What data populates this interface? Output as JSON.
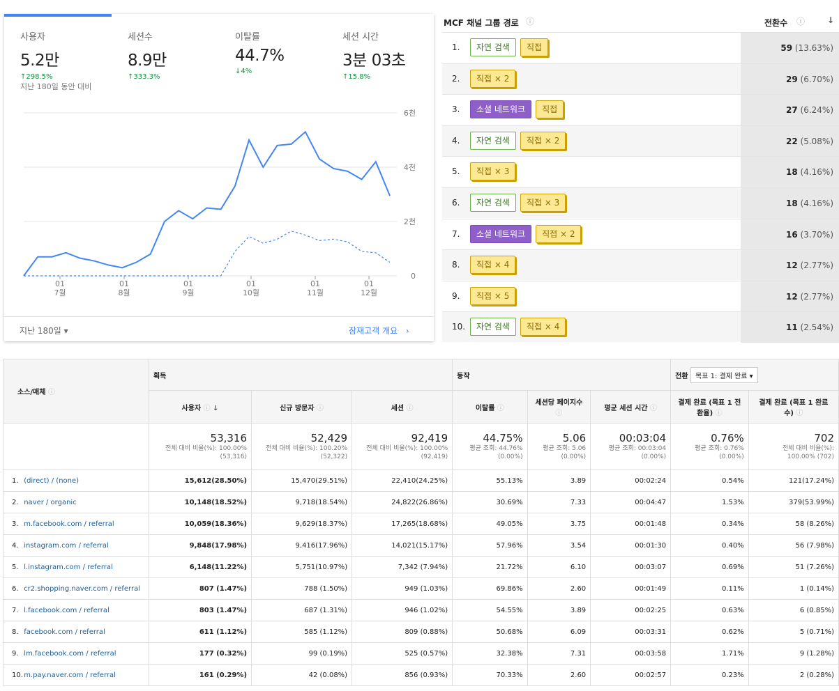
{
  "overview": {
    "metrics": [
      {
        "label": "사용자",
        "value": "5.2만",
        "change": "↑298.5%",
        "note": "지난 180일 동안 대비"
      },
      {
        "label": "세션수",
        "value": "8.9만",
        "change": "↑333.3%",
        "note": ""
      },
      {
        "label": "이탈률",
        "value": "44.7%",
        "change": "↓4%",
        "note": ""
      },
      {
        "label": "세션 시간",
        "value": "3분 03초",
        "change": "↑15.8%",
        "note": ""
      }
    ],
    "footer_range": "지난 180일 ▾",
    "footer_link": "잠재고객 개요",
    "accent": "#4285f4"
  },
  "chart_data": {
    "type": "line",
    "x_ticks": [
      {
        "top": "01",
        "bottom": "7월"
      },
      {
        "top": "01",
        "bottom": "8월"
      },
      {
        "top": "01",
        "bottom": "9월"
      },
      {
        "top": "01",
        "bottom": "10월"
      },
      {
        "top": "01",
        "bottom": "11월"
      },
      {
        "top": "01",
        "bottom": "12월"
      }
    ],
    "y_ticks": [
      "6천",
      "4천",
      "2천",
      "0"
    ],
    "ylim": [
      0,
      6000
    ],
    "series": [
      {
        "style": "solid",
        "values": [
          0,
          700,
          700,
          850,
          650,
          550,
          400,
          300,
          500,
          800,
          2000,
          2400,
          2100,
          2500,
          2450,
          3300,
          5000,
          4000,
          4800,
          4850,
          5300,
          4300,
          3950,
          3850,
          3550,
          4200,
          2950
        ]
      },
      {
        "style": "dashed",
        "values": [
          0,
          0,
          0,
          0,
          0,
          0,
          0,
          0,
          0,
          0,
          0,
          0,
          0,
          0,
          0,
          900,
          1450,
          1200,
          1350,
          1650,
          1500,
          1300,
          1350,
          1250,
          900,
          850,
          500
        ]
      }
    ],
    "grid": true
  },
  "mcf": {
    "header_path": "MCF 채널 그룹 경로",
    "header_conv": "전환수",
    "rows": [
      {
        "n": "1.",
        "chips": [
          {
            "t": "자연 검색",
            "c": "green"
          },
          {
            "t": "직접",
            "c": "yellow"
          }
        ],
        "conv": "59",
        "pct": "(13.63%)"
      },
      {
        "n": "2.",
        "chips": [
          {
            "t": "직접 × 2",
            "c": "yellow"
          }
        ],
        "conv": "29",
        "pct": "(6.70%)"
      },
      {
        "n": "3.",
        "chips": [
          {
            "t": "소셜 네트워크",
            "c": "purple"
          },
          {
            "t": "직접",
            "c": "yellow"
          }
        ],
        "conv": "27",
        "pct": "(6.24%)"
      },
      {
        "n": "4.",
        "chips": [
          {
            "t": "자연 검색",
            "c": "green"
          },
          {
            "t": "직접 × 2",
            "c": "yellow"
          }
        ],
        "conv": "22",
        "pct": "(5.08%)"
      },
      {
        "n": "5.",
        "chips": [
          {
            "t": "직접 × 3",
            "c": "yellow"
          }
        ],
        "conv": "18",
        "pct": "(4.16%)"
      },
      {
        "n": "6.",
        "chips": [
          {
            "t": "자연 검색",
            "c": "green"
          },
          {
            "t": "직접 × 3",
            "c": "yellow"
          }
        ],
        "conv": "18",
        "pct": "(4.16%)"
      },
      {
        "n": "7.",
        "chips": [
          {
            "t": "소셜 네트워크",
            "c": "purple"
          },
          {
            "t": "직접 × 2",
            "c": "yellow"
          }
        ],
        "conv": "16",
        "pct": "(3.70%)"
      },
      {
        "n": "8.",
        "chips": [
          {
            "t": "직접 × 4",
            "c": "yellow"
          }
        ],
        "conv": "12",
        "pct": "(2.77%)"
      },
      {
        "n": "9.",
        "chips": [
          {
            "t": "직접 × 5",
            "c": "yellow"
          }
        ],
        "conv": "12",
        "pct": "(2.77%)"
      },
      {
        "n": "10.",
        "chips": [
          {
            "t": "자연 검색",
            "c": "green"
          },
          {
            "t": "직접 × 4",
            "c": "yellow"
          }
        ],
        "conv": "11",
        "pct": "(2.54%)"
      }
    ]
  },
  "table": {
    "group_acq": "획득",
    "group_beh": "동작",
    "group_conv": "전환",
    "goal_select": "목표 1: 결제 완료",
    "col_source": "소스/매체",
    "cols": [
      "사용자",
      "신규 방문자",
      "세션",
      "이탈률",
      "세션당 페이지수",
      "평균 세션 시간",
      "결제 완료 (목표 1 전환율)",
      "결제 완료 (목표 1 완료 수)"
    ],
    "totals": [
      {
        "big": "53,316",
        "small": "전체 대비 비율(%): 100.00% (53,316)"
      },
      {
        "big": "52,429",
        "small": "전체 대비 비율(%): 100.20% (52,322)"
      },
      {
        "big": "92,419",
        "small": "전체 대비 비율(%): 100.00% (92,419)"
      },
      {
        "big": "44.75%",
        "small": "평균 조회: 44.76% (0.00%)"
      },
      {
        "big": "5.06",
        "small": "평균 조회: 5.06 (0.00%)"
      },
      {
        "big": "00:03:04",
        "small": "평균 조회: 00:03:04 (0.00%)"
      },
      {
        "big": "0.76%",
        "small": "평균 조회: 0.76% (0.00%)"
      },
      {
        "big": "702",
        "small": "전체 대비 비율(%): 100.00% (702)"
      }
    ],
    "rows": [
      {
        "n": "1.",
        "src": "(direct) / (none)",
        "v": [
          "15,612(28.50%)",
          "15,470(29.51%)",
          "22,410(24.25%)",
          "55.13%",
          "3.89",
          "00:02:24",
          "0.54%",
          "121(17.24%)"
        ]
      },
      {
        "n": "2.",
        "src": "naver / organic",
        "v": [
          "10,148(18.52%)",
          "9,718(18.54%)",
          "24,822(26.86%)",
          "30.69%",
          "7.33",
          "00:04:47",
          "1.53%",
          "379(53.99%)"
        ]
      },
      {
        "n": "3.",
        "src": "m.facebook.com / referral",
        "v": [
          "10,059(18.36%)",
          "9,629(18.37%)",
          "17,265(18.68%)",
          "49.05%",
          "3.75",
          "00:01:48",
          "0.34%",
          "58 (8.26%)"
        ]
      },
      {
        "n": "4.",
        "src": "instagram.com / referral",
        "v": [
          "9,848(17.98%)",
          "9,416(17.96%)",
          "14,021(15.17%)",
          "57.96%",
          "3.54",
          "00:01:30",
          "0.40%",
          "56 (7.98%)"
        ]
      },
      {
        "n": "5.",
        "src": "l.instagram.com / referral",
        "v": [
          "6,148(11.22%)",
          "5,751(10.97%)",
          "7,342 (7.94%)",
          "21.72%",
          "6.10",
          "00:03:07",
          "0.69%",
          "51 (7.26%)"
        ]
      },
      {
        "n": "6.",
        "src": "cr2.shopping.naver.com / referral",
        "v": [
          "807 (1.47%)",
          "788 (1.50%)",
          "949 (1.03%)",
          "69.86%",
          "2.60",
          "00:01:49",
          "0.11%",
          "1 (0.14%)"
        ]
      },
      {
        "n": "7.",
        "src": "l.facebook.com / referral",
        "v": [
          "803 (1.47%)",
          "687 (1.31%)",
          "946 (1.02%)",
          "54.55%",
          "3.89",
          "00:02:25",
          "0.63%",
          "6 (0.85%)"
        ]
      },
      {
        "n": "8.",
        "src": "facebook.com / referral",
        "v": [
          "611 (1.12%)",
          "585 (1.12%)",
          "809 (0.88%)",
          "50.68%",
          "6.09",
          "00:03:31",
          "0.62%",
          "5 (0.71%)"
        ]
      },
      {
        "n": "9.",
        "src": "lm.facebook.com / referral",
        "v": [
          "177 (0.32%)",
          "99 (0.19%)",
          "525 (0.57%)",
          "32.38%",
          "7.31",
          "00:03:58",
          "1.71%",
          "9 (1.28%)"
        ]
      },
      {
        "n": "10.",
        "src": "m.pay.naver.com / referral",
        "v": [
          "161 (0.29%)",
          "42 (0.08%)",
          "856 (0.93%)",
          "70.33%",
          "2.60",
          "00:02:57",
          "0.23%",
          "2 (0.28%)"
        ]
      }
    ]
  }
}
